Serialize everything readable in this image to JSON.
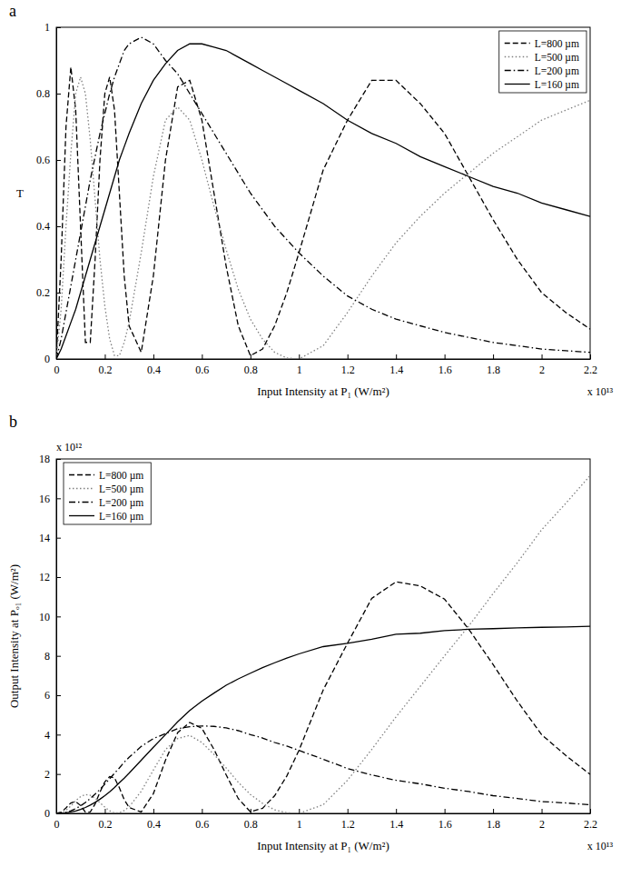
{
  "chart_data": [
    {
      "type": "line",
      "title": "a",
      "xlabel": "Input Intensity at P₁ (W/m²)",
      "ylabel": "T",
      "annotations": [
        {
          "text": "x 10¹³",
          "axis": "x"
        }
      ],
      "xlim": [
        0,
        2.2
      ],
      "xticks": [
        0,
        0.2,
        0.4,
        0.6,
        0.8,
        1,
        1.2,
        1.4,
        1.6,
        1.8,
        2,
        2.2
      ],
      "ylim": [
        0,
        1
      ],
      "yticks": [
        0,
        0.2,
        0.4,
        0.6,
        0.8,
        1
      ],
      "grid": false,
      "legend": "upper right",
      "x": [
        0,
        0.02,
        0.04,
        0.06,
        0.08,
        0.1,
        0.12,
        0.14,
        0.16,
        0.18,
        0.2,
        0.22,
        0.24,
        0.26,
        0.28,
        0.3,
        0.35,
        0.4,
        0.45,
        0.5,
        0.55,
        0.6,
        0.65,
        0.7,
        0.75,
        0.8,
        0.85,
        0.9,
        0.95,
        1.0,
        1.1,
        1.2,
        1.3,
        1.4,
        1.5,
        1.6,
        1.7,
        1.8,
        1.9,
        2.0,
        2.1,
        2.2
      ],
      "series": [
        {
          "name": "L=800 µm",
          "color": "#000000",
          "line_style": "dashed",
          "values": [
            0,
            0.3,
            0.7,
            0.88,
            0.75,
            0.4,
            0.05,
            0.05,
            0.3,
            0.6,
            0.8,
            0.85,
            0.75,
            0.5,
            0.25,
            0.1,
            0.02,
            0.25,
            0.6,
            0.82,
            0.84,
            0.72,
            0.5,
            0.28,
            0.1,
            0.01,
            0.03,
            0.1,
            0.2,
            0.32,
            0.57,
            0.72,
            0.84,
            0.84,
            0.77,
            0.68,
            0.55,
            0.42,
            0.3,
            0.2,
            0.14,
            0.09
          ]
        },
        {
          "name": "L=500 µm",
          "color": "#808080",
          "line_style": "dotted",
          "values": [
            0,
            0.15,
            0.4,
            0.62,
            0.8,
            0.85,
            0.8,
            0.66,
            0.48,
            0.3,
            0.16,
            0.06,
            0.01,
            0.01,
            0.05,
            0.11,
            0.32,
            0.55,
            0.72,
            0.76,
            0.72,
            0.6,
            0.46,
            0.33,
            0.21,
            0.12,
            0.06,
            0.02,
            0.003,
            0,
            0.04,
            0.14,
            0.25,
            0.35,
            0.43,
            0.5,
            0.56,
            0.62,
            0.67,
            0.72,
            0.75,
            0.78
          ]
        },
        {
          "name": "L=200 µm",
          "color": "#000000",
          "line_style": "dashdot",
          "values": [
            0,
            0.06,
            0.14,
            0.22,
            0.3,
            0.38,
            0.46,
            0.54,
            0.61,
            0.68,
            0.74,
            0.8,
            0.85,
            0.89,
            0.93,
            0.95,
            0.97,
            0.95,
            0.9,
            0.86,
            0.8,
            0.74,
            0.68,
            0.62,
            0.56,
            0.5,
            0.45,
            0.4,
            0.36,
            0.32,
            0.25,
            0.19,
            0.15,
            0.12,
            0.1,
            0.08,
            0.065,
            0.05,
            0.04,
            0.03,
            0.025,
            0.02
          ]
        },
        {
          "name": "L=160 µm",
          "color": "#000000",
          "line_style": "solid",
          "values": [
            0,
            0.03,
            0.07,
            0.11,
            0.15,
            0.2,
            0.25,
            0.3,
            0.35,
            0.4,
            0.45,
            0.5,
            0.55,
            0.6,
            0.64,
            0.68,
            0.77,
            0.84,
            0.89,
            0.93,
            0.95,
            0.95,
            0.94,
            0.93,
            0.91,
            0.89,
            0.87,
            0.85,
            0.83,
            0.81,
            0.77,
            0.72,
            0.68,
            0.65,
            0.61,
            0.58,
            0.55,
            0.52,
            0.5,
            0.47,
            0.45,
            0.43
          ]
        }
      ]
    },
    {
      "type": "line",
      "title": "b",
      "xlabel": "Input Intensity at P₁ (W/m²)",
      "ylabel": "Output Intensity at Pₒ₁ (W/m²)",
      "annotations": [
        {
          "text": "x 10¹³",
          "axis": "x"
        },
        {
          "text": "x 10¹²",
          "axis": "y"
        }
      ],
      "xlim": [
        0,
        2.2
      ],
      "xticks": [
        0,
        0.2,
        0.4,
        0.6,
        0.8,
        1,
        1.2,
        1.4,
        1.6,
        1.8,
        2,
        2.2
      ],
      "ylim": [
        0,
        18
      ],
      "yticks": [
        0,
        2,
        4,
        6,
        8,
        10,
        12,
        14,
        16,
        18
      ],
      "grid": false,
      "legend": "upper left",
      "x": [
        0,
        0.02,
        0.04,
        0.06,
        0.08,
        0.1,
        0.12,
        0.14,
        0.16,
        0.18,
        0.2,
        0.22,
        0.24,
        0.26,
        0.28,
        0.3,
        0.35,
        0.4,
        0.45,
        0.5,
        0.55,
        0.6,
        0.65,
        0.7,
        0.75,
        0.8,
        0.85,
        0.9,
        0.95,
        1.0,
        1.1,
        1.2,
        1.3,
        1.4,
        1.5,
        1.6,
        1.7,
        1.8,
        1.9,
        2.0,
        2.1,
        2.2
      ],
      "series": [
        {
          "name": "L=800 µm",
          "color": "#000000",
          "line_style": "dashed",
          "values": [
            0,
            0.06,
            0.28,
            0.53,
            0.6,
            0.4,
            0.06,
            0.07,
            0.48,
            1.08,
            1.6,
            1.87,
            1.8,
            1.3,
            0.7,
            0.3,
            0.07,
            1.0,
            2.7,
            4.1,
            4.62,
            4.32,
            3.25,
            1.96,
            0.75,
            0.08,
            0.26,
            0.9,
            1.9,
            3.2,
            6.27,
            8.64,
            10.92,
            11.76,
            11.55,
            10.88,
            9.35,
            7.56,
            5.7,
            4.0,
            2.94,
            1.98
          ]
        },
        {
          "name": "L=500 µm",
          "color": "#808080",
          "line_style": "dotted",
          "values": [
            0,
            0.03,
            0.16,
            0.37,
            0.64,
            0.85,
            0.96,
            0.92,
            0.77,
            0.54,
            0.32,
            0.13,
            0.02,
            0.03,
            0.14,
            0.33,
            1.12,
            2.2,
            3.24,
            3.8,
            3.96,
            3.6,
            2.99,
            2.31,
            1.58,
            0.96,
            0.51,
            0.18,
            0.03,
            0,
            0.44,
            1.68,
            3.25,
            4.9,
            6.45,
            8.0,
            9.52,
            11.16,
            12.73,
            14.4,
            15.75,
            17.16
          ]
        },
        {
          "name": "L=200 µm",
          "color": "#000000",
          "line_style": "dashdot",
          "values": [
            0,
            0.01,
            0.06,
            0.13,
            0.24,
            0.38,
            0.55,
            0.76,
            0.98,
            1.22,
            1.48,
            1.76,
            2.04,
            2.31,
            2.6,
            2.85,
            3.4,
            3.8,
            4.05,
            4.3,
            4.4,
            4.44,
            4.42,
            4.34,
            4.2,
            4.0,
            3.83,
            3.6,
            3.42,
            3.2,
            2.75,
            2.28,
            1.95,
            1.68,
            1.5,
            1.28,
            1.11,
            0.9,
            0.76,
            0.6,
            0.53,
            0.44
          ]
        },
        {
          "name": "L=160 µm",
          "color": "#000000",
          "line_style": "solid",
          "values": [
            0,
            0.01,
            0.03,
            0.07,
            0.12,
            0.2,
            0.3,
            0.42,
            0.56,
            0.72,
            0.9,
            1.1,
            1.32,
            1.56,
            1.79,
            2.04,
            2.7,
            3.36,
            4.0,
            4.65,
            5.23,
            5.7,
            6.11,
            6.51,
            6.83,
            7.12,
            7.4,
            7.65,
            7.89,
            8.1,
            8.47,
            8.64,
            8.84,
            9.1,
            9.15,
            9.28,
            9.35,
            9.38,
            9.42,
            9.45,
            9.47,
            9.5
          ]
        }
      ]
    }
  ]
}
